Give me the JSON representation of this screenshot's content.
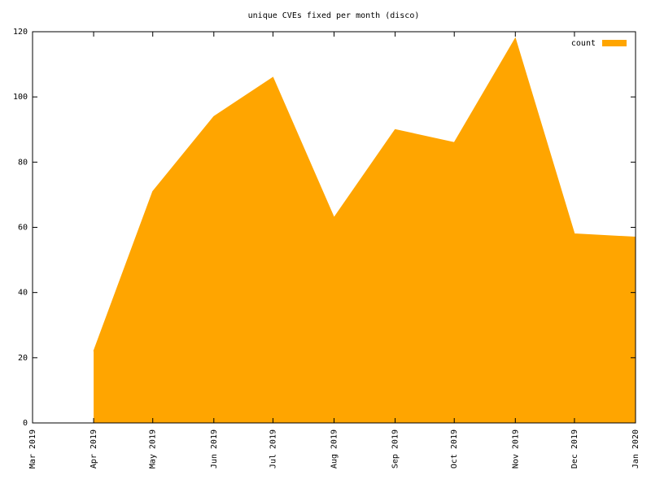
{
  "chart_data": {
    "type": "area",
    "title": "unique CVEs fixed per month (disco)",
    "x": [
      "Apr 2019",
      "May 2019",
      "Jun 2019",
      "Jul 2019",
      "Aug 2019",
      "Sep 2019",
      "Oct 2019",
      "Nov 2019",
      "Dec 2019",
      "Jan 2020"
    ],
    "series": [
      {
        "name": "count",
        "color": "#ffa500",
        "values": [
          22,
          71,
          94,
          106,
          63,
          90,
          86,
          118,
          58,
          57
        ]
      }
    ],
    "xlim": [
      "Mar 2019",
      "Jan 2020"
    ],
    "xticks": [
      "Mar 2019",
      "Apr 2019",
      "May 2019",
      "Jun 2019",
      "Jul 2019",
      "Aug 2019",
      "Sep 2019",
      "Oct 2019",
      "Nov 2019",
      "Dec 2019",
      "Jan 2020"
    ],
    "ylim": [
      0,
      120
    ],
    "yticks": [
      0,
      20,
      40,
      60,
      80,
      100,
      120
    ],
    "legend": "top-right",
    "grid": false
  }
}
